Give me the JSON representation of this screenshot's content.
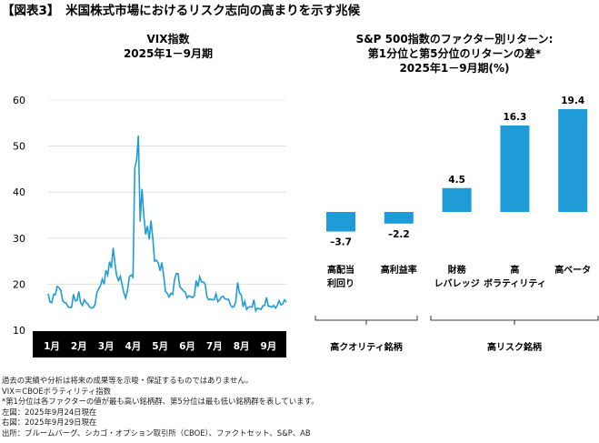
{
  "title": "【図表3】　米国株式市場におけるリスク志向の高まりを示す兆候",
  "chart_data": [
    {
      "type": "line",
      "title": "VIX指数",
      "subtitle": "2025年1－9月期",
      "ylim": [
        10,
        60
      ],
      "yticks": [
        10,
        20,
        30,
        40,
        50,
        60
      ],
      "xticks": [
        "1月",
        "2月",
        "3月",
        "4月",
        "5月",
        "6月",
        "7月",
        "8月",
        "9月"
      ],
      "color": "#1f9bd7",
      "values": [
        17.9,
        16.1,
        16.0,
        17.8,
        17.7,
        19.5,
        19.2,
        18.7,
        16.4,
        16.0,
        15.9,
        15.1,
        14.9,
        15.0,
        17.8,
        16.4,
        16.5,
        18.4,
        16.0,
        15.4,
        16.6,
        16.0,
        15.7,
        15.0,
        14.8,
        14.9,
        15.6,
        18.2,
        19.0,
        19.7,
        21.1,
        20.0,
        23.0,
        22.0,
        24.9,
        23.5,
        27.9,
        24.6,
        21.8,
        20.8,
        21.7,
        19.8,
        18.0,
        17.0,
        18.7,
        21.6,
        22.0,
        21.5,
        45.3,
        46.9,
        52.3,
        33.6,
        40.7,
        35.0,
        30.8,
        32.6,
        29.7,
        33.8,
        30.0,
        25.0,
        25.2,
        24.6,
        22.9,
        24.7,
        22.0,
        18.5,
        18.0,
        17.2,
        18.0,
        17.8,
        20.8,
        22.3,
        22.3,
        19.4,
        19.0,
        18.5,
        18.3,
        17.0,
        17.5,
        17.3,
        17.1,
        17.5,
        20.8,
        19.4,
        21.6,
        20.5,
        20.5,
        20.0,
        17.2,
        16.6,
        16.8,
        16.6,
        16.6,
        17.9,
        16.2,
        16.6,
        17.2,
        17.4,
        16.8,
        16.7,
        16.7,
        15.5,
        15.0,
        15.1,
        16.2,
        20.4,
        18.1,
        17.7,
        15.1,
        16.3,
        14.5,
        15.0,
        15.1,
        15.0,
        16.6,
        14.2,
        14.8,
        14.7,
        14.5,
        15.3,
        15.4,
        17.1,
        15.2,
        15.2,
        15.0,
        15.4,
        14.8,
        15.4,
        16.4,
        15.5,
        15.7,
        16.6,
        16.1
      ]
    },
    {
      "type": "bar",
      "title": "S&P 500指数のファクター別リターン:",
      "subtitle": "第1分位と第5分位のリターンの差*",
      "subtitle2": "2025年1－9月期(%)",
      "categories": [
        [
          "高配当",
          "利回り"
        ],
        [
          "高利益率",
          ""
        ],
        [
          "財務",
          "レバレッジ"
        ],
        [
          "高",
          "ボラティリティ"
        ],
        [
          "高ベータ",
          ""
        ]
      ],
      "values": [
        -3.7,
        -2.2,
        4.5,
        16.3,
        19.4
      ],
      "labels": [
        "–3.7",
        "–2.2",
        "4.5",
        "16.3",
        "19.4"
      ],
      "color": "#1f9bd7",
      "groups": [
        "高クオリティ銘柄",
        "高リスク銘柄"
      ]
    }
  ],
  "notes": [
    "過去の実績や分析は将来の成果等を示唆・保証するものではありません。",
    "VIX＝CBOEボラティリティ指数",
    "*第1分位は各ファクターの値が最も高い銘柄群、第5分位は最も低い銘柄群を表しています。",
    "左図：2025年9月24日現在",
    "右図：2025年9月29日現在",
    "出所：ブルームバーグ、シカゴ・オプション取引所（CBOE）、ファクトセット、S&P、AB"
  ]
}
